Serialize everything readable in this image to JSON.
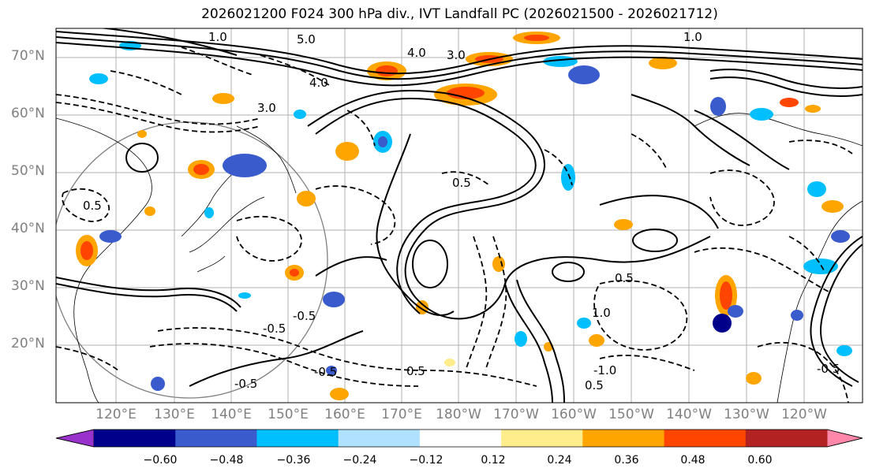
{
  "title": "2026021200 F024 300 hPa div., IVT Landfall PC (2026021500 - 2026021712)",
  "map": {
    "lat_labels": [
      "70°N",
      "60°N",
      "50°N",
      "40°N",
      "30°N",
      "20°N"
    ],
    "lon_labels": [
      "120°E",
      "130°E",
      "140°E",
      "150°E",
      "160°E",
      "170°E",
      "180°W",
      "170°W",
      "160°W",
      "150°W",
      "140°W",
      "130°W",
      "120°W"
    ],
    "contour_labels": [
      "1.0",
      "5.0",
      "4.0",
      "3.0",
      "1.0",
      "4.0",
      "3.0",
      "0.5",
      "0.5",
      "1.0",
      "-0.5",
      "-0.5",
      "0.5",
      "-0.5",
      "-1.0",
      "-0.5",
      "0.5",
      "-0.5",
      "0.5"
    ]
  },
  "colorbar": {
    "colors": [
      "#9932CC",
      "#00008B",
      "#3A5BCC",
      "#00BFFF",
      "#B0E2FF",
      "#FFFFFF",
      "#FFEC8B",
      "#FFA500",
      "#FF4500",
      "#B22222",
      "#FF88AA"
    ],
    "ticks": [
      "−0.60",
      "−0.48",
      "−0.36",
      "−0.24",
      "−0.12",
      "0.12",
      "0.24",
      "0.36",
      "0.48",
      "0.60"
    ]
  }
}
